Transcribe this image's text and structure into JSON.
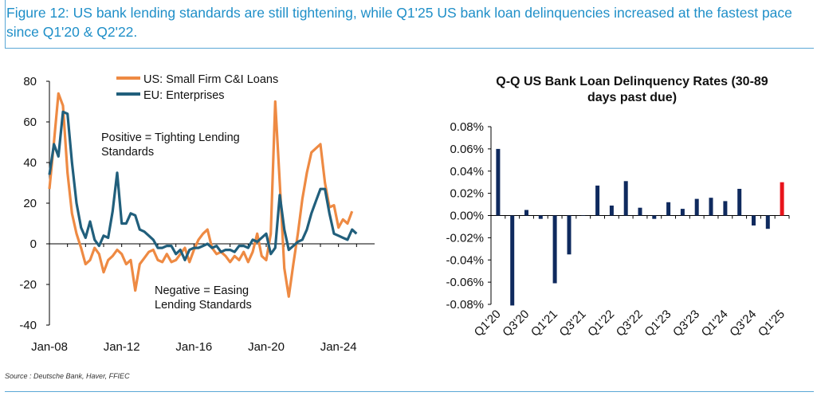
{
  "title": "Figure 12: US bank lending standards are still tightening, while Q1'25 US bank loan delinquencies increased at the fastest pace since Q1'20 & Q2'22.",
  "source": "Source : Deutsche Bank, Haver, FFIEC",
  "colors": {
    "us_series": "#ee8a43",
    "eu_series": "#215f7c",
    "bar_default": "#0f2a5e",
    "bar_highlight": "#e8141c",
    "title_blue": "#1f8fc8"
  },
  "chart_data": [
    {
      "type": "line",
      "title": "",
      "xlabel": "",
      "ylabel": "",
      "ylim": [
        -40,
        80
      ],
      "yticks": [
        80,
        60,
        40,
        20,
        0,
        -20,
        -40
      ],
      "xlim": [
        2008.0,
        2026.0
      ],
      "xtick_labels": [
        "Jan-08",
        "Jan-12",
        "Jan-16",
        "Jan-20",
        "Jan-24"
      ],
      "xtick_values": [
        2008,
        2012,
        2016,
        2020,
        2024
      ],
      "legend_position": "top-center",
      "annotations": {
        "positive": "Positive = Tighting Lending Standards",
        "negative": "Negative = Easing Lending Standards"
      },
      "series": [
        {
          "name": "US: Small Firm C&I Loans",
          "color": "#ee8a43",
          "x": [
            2008.0,
            2008.25,
            2008.5,
            2008.75,
            2009.0,
            2009.25,
            2009.5,
            2009.75,
            2010.0,
            2010.25,
            2010.5,
            2010.75,
            2011.0,
            2011.25,
            2011.5,
            2011.75,
            2012.0,
            2012.25,
            2012.5,
            2012.75,
            2013.0,
            2013.25,
            2013.5,
            2013.75,
            2014.0,
            2014.25,
            2014.5,
            2014.75,
            2015.0,
            2015.25,
            2015.5,
            2015.75,
            2016.0,
            2016.25,
            2016.5,
            2016.75,
            2017.0,
            2017.25,
            2017.5,
            2017.75,
            2018.0,
            2018.25,
            2018.5,
            2018.75,
            2019.0,
            2019.25,
            2019.5,
            2019.75,
            2020.0,
            2020.25,
            2020.5,
            2020.75,
            2021.0,
            2021.25,
            2021.5,
            2021.75,
            2022.0,
            2022.25,
            2022.5,
            2022.75,
            2023.0,
            2023.25,
            2023.5,
            2023.75,
            2024.0,
            2024.25,
            2024.5,
            2024.75,
            2025.0
          ],
          "values": [
            27,
            50,
            74,
            68,
            35,
            15,
            5,
            -2,
            -10,
            -8,
            -2,
            -5,
            -14,
            -8,
            -6,
            -3,
            -5,
            -10,
            -8,
            -23,
            -10,
            -7,
            -4,
            -3,
            -8,
            -9,
            -5,
            -9,
            -8,
            -5,
            -2,
            -9,
            -3,
            2,
            5,
            7,
            -2,
            -5,
            -4,
            -6,
            -9,
            -6,
            -8,
            -4,
            -9,
            -4,
            5,
            -6,
            -8,
            5,
            70,
            30,
            -12,
            -26,
            -10,
            5,
            22,
            35,
            45,
            47,
            49,
            30,
            18,
            19,
            8,
            12,
            10,
            16,
            null
          ]
        },
        {
          "name": "EU: Enterprises",
          "color": "#215f7c",
          "x": [
            2008.0,
            2008.25,
            2008.5,
            2008.75,
            2009.0,
            2009.25,
            2009.5,
            2009.75,
            2010.0,
            2010.25,
            2010.5,
            2010.75,
            2011.0,
            2011.25,
            2011.5,
            2011.75,
            2012.0,
            2012.25,
            2012.5,
            2012.75,
            2013.0,
            2013.25,
            2013.5,
            2013.75,
            2014.0,
            2014.25,
            2014.5,
            2014.75,
            2015.0,
            2015.25,
            2015.5,
            2015.75,
            2016.0,
            2016.25,
            2016.5,
            2016.75,
            2017.0,
            2017.25,
            2017.5,
            2017.75,
            2018.0,
            2018.25,
            2018.5,
            2018.75,
            2019.0,
            2019.25,
            2019.5,
            2019.75,
            2020.0,
            2020.25,
            2020.5,
            2020.75,
            2021.0,
            2021.25,
            2021.5,
            2021.75,
            2022.0,
            2022.25,
            2022.5,
            2022.75,
            2023.0,
            2023.25,
            2023.5,
            2023.75,
            2024.0,
            2024.25,
            2024.5,
            2024.75,
            2025.0
          ],
          "values": [
            34,
            49,
            43,
            65,
            64,
            40,
            20,
            8,
            3,
            11,
            2,
            -1,
            4,
            3,
            16,
            35,
            10,
            10,
            15,
            14,
            7,
            6,
            4,
            2,
            -2,
            -2,
            -1,
            -1,
            -5,
            -3,
            -8,
            -3,
            -2,
            -2,
            -1,
            0,
            -2,
            -1,
            -4,
            -3,
            -3,
            -4,
            -1,
            -1,
            -2,
            2,
            1,
            3,
            5,
            -5,
            -2,
            24,
            7,
            -3,
            -1,
            1,
            2,
            7,
            15,
            21,
            27,
            27,
            15,
            5,
            4,
            3,
            2,
            7,
            5
          ]
        }
      ]
    },
    {
      "type": "bar",
      "title": "Q-Q US Bank Loan Delinquency Rates (30-89 days past due)",
      "xlabel": "",
      "ylabel": "",
      "ylim": [
        -0.08,
        0.08
      ],
      "ytick_labels": [
        "0.08%",
        "0.06%",
        "0.04%",
        "0.02%",
        "0.00%",
        "-0.02%",
        "-0.04%",
        "-0.06%",
        "-0.08%"
      ],
      "yticks": [
        0.08,
        0.06,
        0.04,
        0.02,
        0.0,
        -0.02,
        -0.04,
        -0.06,
        -0.08
      ],
      "categories": [
        "Q1'20",
        "Q2'20",
        "Q3'20",
        "Q4'20",
        "Q1'21",
        "Q2'21",
        "Q3'21",
        "Q4'21",
        "Q1'22",
        "Q2'22",
        "Q3'22",
        "Q4'22",
        "Q1'23",
        "Q2'23",
        "Q3'23",
        "Q4'23",
        "Q1'24",
        "Q2'24",
        "Q3'24",
        "Q4'24",
        "Q1'25"
      ],
      "xtick_labels": [
        "Q1'20",
        "Q3'20",
        "Q1'21",
        "Q3'21",
        "Q1'22",
        "Q3'22",
        "Q1'23",
        "Q3'23",
        "Q1'24",
        "Q3'24",
        "Q1'25"
      ],
      "values": [
        0.06,
        -0.081,
        0.005,
        -0.003,
        -0.061,
        -0.035,
        0.0,
        0.027,
        0.009,
        0.031,
        0.007,
        -0.003,
        0.012,
        0.006,
        0.015,
        0.016,
        0.013,
        0.024,
        -0.009,
        -0.012,
        0.03
      ],
      "highlight_index": 20
    }
  ]
}
